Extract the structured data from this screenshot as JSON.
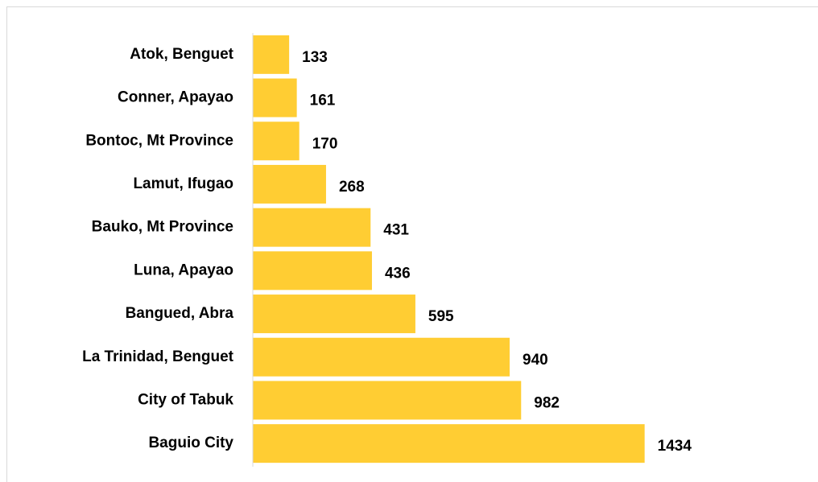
{
  "chart_data": {
    "type": "bar",
    "orientation": "horizontal",
    "categories": [
      "Atok, Benguet",
      "Conner, Apayao",
      "Bontoc, Mt Province",
      "Lamut, Ifugao",
      "Bauko, Mt Province",
      "Luna, Apayao",
      "Bangued, Abra",
      "La Trinidad, Benguet",
      "City of Tabuk",
      "Baguio City"
    ],
    "values": [
      133,
      161,
      170,
      268,
      431,
      436,
      595,
      940,
      982,
      1434
    ],
    "color": "#ffcd33",
    "xlim": [
      0,
      1600
    ]
  }
}
